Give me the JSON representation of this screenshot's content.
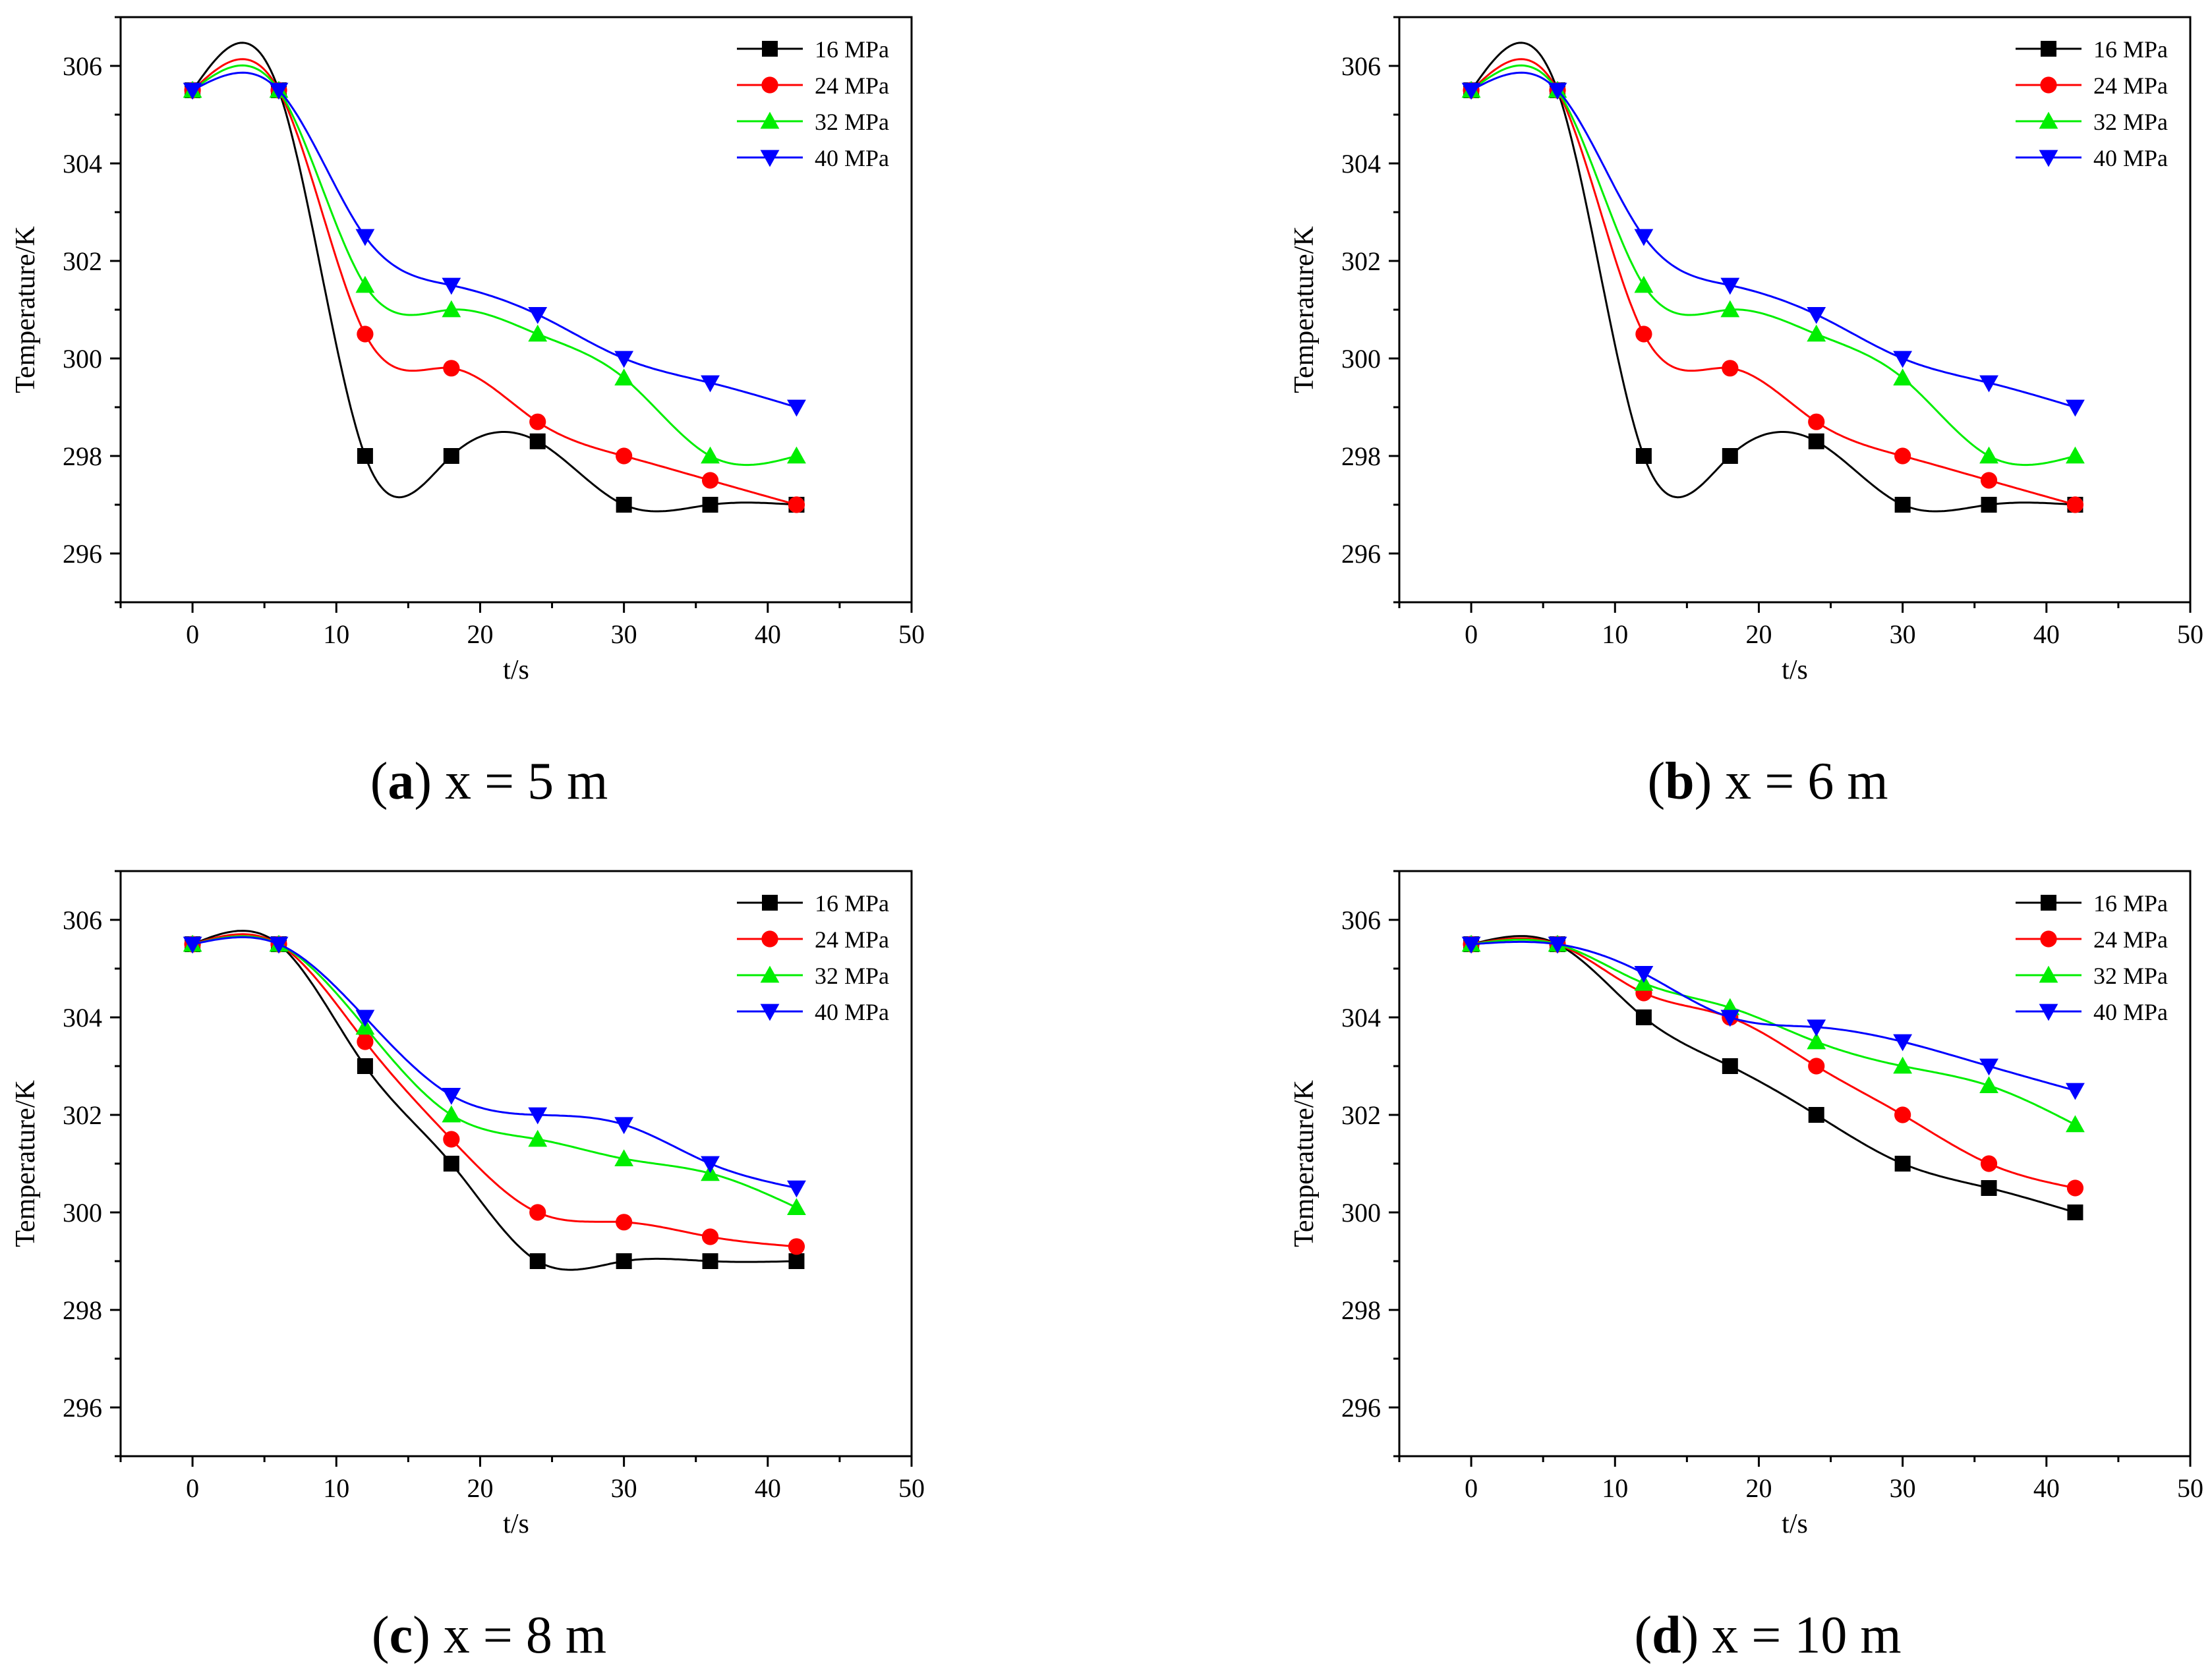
{
  "colors": {
    "s16": "#000000",
    "s24": "#ff0000",
    "s32": "#00ee00",
    "s40": "#0000ff"
  },
  "chart_data": [
    {
      "type": "line",
      "panel_letter": "a",
      "caption": "x = 5 m",
      "xlabel": "t/s",
      "ylabel": "Temperature/K",
      "xlim": [
        -5,
        50
      ],
      "ylim": [
        295,
        307
      ],
      "xticks": [
        0,
        10,
        20,
        30,
        40,
        50
      ],
      "yticks": [
        296,
        298,
        300,
        302,
        304,
        306
      ],
      "grid": false,
      "legend_position": "top-right",
      "x": [
        0,
        6,
        12,
        18,
        24,
        30,
        36,
        42
      ],
      "series": [
        {
          "name": "16 MPa",
          "marker": "square",
          "color": "#000000",
          "values": [
            305.5,
            305.5,
            298.0,
            298.0,
            298.3,
            297.0,
            297.0,
            297.0
          ]
        },
        {
          "name": "24 MPa",
          "marker": "circle",
          "color": "#ff0000",
          "values": [
            305.5,
            305.5,
            300.5,
            299.8,
            298.7,
            298.0,
            297.5,
            297.0
          ]
        },
        {
          "name": "32 MPa",
          "marker": "triangle-up",
          "color": "#00ee00",
          "values": [
            305.5,
            305.5,
            301.5,
            301.0,
            300.5,
            299.6,
            298.0,
            298.0
          ]
        },
        {
          "name": "40 MPa",
          "marker": "triangle-down",
          "color": "#0000ff",
          "values": [
            305.5,
            305.5,
            302.5,
            301.5,
            300.9,
            300.0,
            299.5,
            299.0
          ]
        }
      ]
    },
    {
      "type": "line",
      "panel_letter": "b",
      "caption": "x = 6 m",
      "xlabel": "t/s",
      "ylabel": "Temperature/K",
      "xlim": [
        -5,
        50
      ],
      "ylim": [
        295,
        307
      ],
      "xticks": [
        0,
        10,
        20,
        30,
        40,
        50
      ],
      "yticks": [
        296,
        298,
        300,
        302,
        304,
        306
      ],
      "grid": false,
      "legend_position": "top-right",
      "x": [
        0,
        6,
        12,
        18,
        24,
        30,
        36,
        42
      ],
      "series": [
        {
          "name": "16 MPa",
          "marker": "square",
          "color": "#000000",
          "values": [
            305.5,
            305.5,
            298.0,
            298.0,
            298.3,
            297.0,
            297.0,
            297.0
          ]
        },
        {
          "name": "24 MPa",
          "marker": "circle",
          "color": "#ff0000",
          "values": [
            305.5,
            305.5,
            300.5,
            299.8,
            298.7,
            298.0,
            297.5,
            297.0
          ]
        },
        {
          "name": "32 MPa",
          "marker": "triangle-up",
          "color": "#00ee00",
          "values": [
            305.5,
            305.5,
            301.5,
            301.0,
            300.5,
            299.6,
            298.0,
            298.0
          ]
        },
        {
          "name": "40 MPa",
          "marker": "triangle-down",
          "color": "#0000ff",
          "values": [
            305.5,
            305.5,
            302.5,
            301.5,
            300.9,
            300.0,
            299.5,
            299.0
          ]
        }
      ]
    },
    {
      "type": "line",
      "panel_letter": "c",
      "caption": "x = 8 m",
      "xlabel": "t/s",
      "ylabel": "Temperature/K",
      "xlim": [
        -5,
        50
      ],
      "ylim": [
        295,
        307
      ],
      "xticks": [
        0,
        10,
        20,
        30,
        40,
        50
      ],
      "yticks": [
        296,
        298,
        300,
        302,
        304,
        306
      ],
      "grid": false,
      "legend_position": "top-right",
      "x": [
        0,
        6,
        12,
        18,
        24,
        30,
        36,
        42
      ],
      "series": [
        {
          "name": "16 MPa",
          "marker": "square",
          "color": "#000000",
          "values": [
            305.5,
            305.5,
            303.0,
            301.0,
            299.0,
            299.0,
            299.0,
            299.0
          ]
        },
        {
          "name": "24 MPa",
          "marker": "circle",
          "color": "#ff0000",
          "values": [
            305.5,
            305.5,
            303.5,
            301.5,
            300.0,
            299.8,
            299.5,
            299.3
          ]
        },
        {
          "name": "32 MPa",
          "marker": "triangle-up",
          "color": "#00ee00",
          "values": [
            305.5,
            305.5,
            303.8,
            302.0,
            301.5,
            301.1,
            300.8,
            300.1
          ]
        },
        {
          "name": "40 MPa",
          "marker": "triangle-down",
          "color": "#0000ff",
          "values": [
            305.5,
            305.5,
            304.0,
            302.4,
            302.0,
            301.8,
            301.0,
            300.5
          ]
        }
      ]
    },
    {
      "type": "line",
      "panel_letter": "d",
      "caption": "x = 10 m",
      "xlabel": "t/s",
      "ylabel": "Temperature/K",
      "xlim": [
        -5,
        50
      ],
      "ylim": [
        295,
        307
      ],
      "xticks": [
        0,
        10,
        20,
        30,
        40,
        50
      ],
      "yticks": [
        296,
        298,
        300,
        302,
        304,
        306
      ],
      "grid": false,
      "legend_position": "top-right",
      "x": [
        0,
        6,
        12,
        18,
        24,
        30,
        36,
        42
      ],
      "series": [
        {
          "name": "16 MPa",
          "marker": "square",
          "color": "#000000",
          "values": [
            305.5,
            305.5,
            304.0,
            303.0,
            302.0,
            301.0,
            300.5,
            300.0
          ]
        },
        {
          "name": "24 MPa",
          "marker": "circle",
          "color": "#ff0000",
          "values": [
            305.5,
            305.5,
            304.5,
            304.0,
            303.0,
            302.0,
            301.0,
            300.5
          ]
        },
        {
          "name": "32 MPa",
          "marker": "triangle-up",
          "color": "#00ee00",
          "values": [
            305.5,
            305.5,
            304.7,
            304.2,
            303.5,
            303.0,
            302.6,
            301.8
          ]
        },
        {
          "name": "40 MPa",
          "marker": "triangle-down",
          "color": "#0000ff",
          "values": [
            305.5,
            305.5,
            304.9,
            304.0,
            303.8,
            303.5,
            303.0,
            302.5
          ]
        }
      ]
    }
  ]
}
